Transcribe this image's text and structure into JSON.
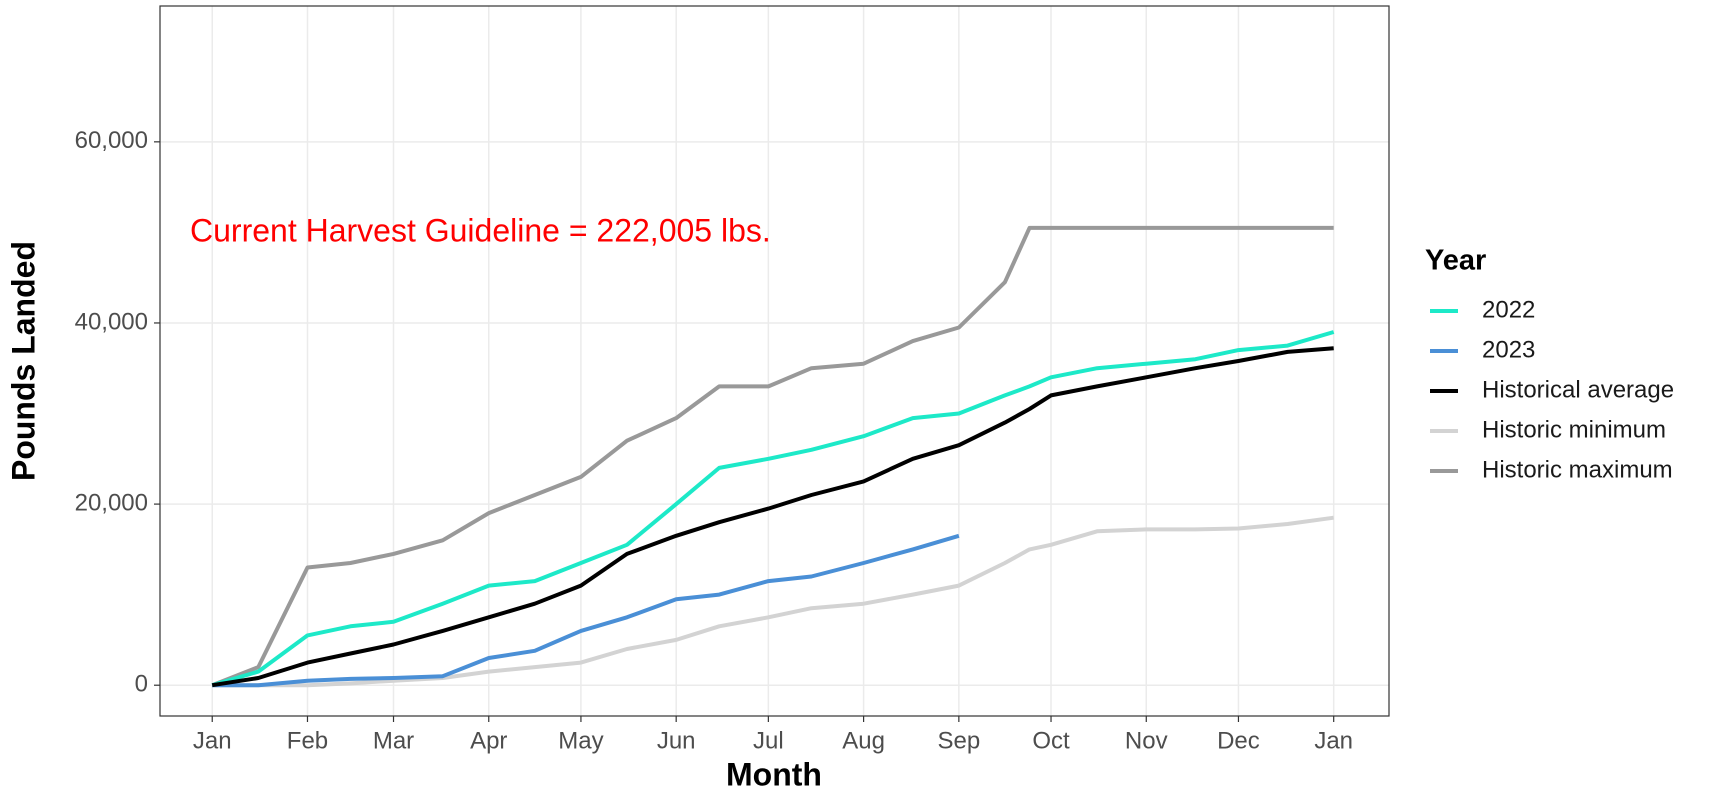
{
  "chart_data": {
    "type": "line",
    "annotation": "Current Harvest Guideline = 222,005 lbs.",
    "x_label": "Month",
    "y_label": "Pounds Landed",
    "legend_title": "Year",
    "legend": "right",
    "grid": true,
    "x": [
      0,
      15,
      31,
      45,
      59,
      75,
      90,
      105,
      120,
      135,
      151,
      165,
      181,
      195,
      212,
      228,
      243,
      258,
      266,
      273,
      288,
      304,
      320,
      334,
      350,
      365
    ],
    "xlim": [
      -17,
      383
    ],
    "xticks": [
      {
        "value": 0,
        "label": "Jan"
      },
      {
        "value": 31,
        "label": "Feb"
      },
      {
        "value": 59,
        "label": "Mar"
      },
      {
        "value": 90,
        "label": "Apr"
      },
      {
        "value": 120,
        "label": "May"
      },
      {
        "value": 151,
        "label": "Jun"
      },
      {
        "value": 181,
        "label": "Jul"
      },
      {
        "value": 212,
        "label": "Aug"
      },
      {
        "value": 243,
        "label": "Sep"
      },
      {
        "value": 273,
        "label": "Oct"
      },
      {
        "value": 304,
        "label": "Nov"
      },
      {
        "value": 334,
        "label": "Dec"
      },
      {
        "value": 365,
        "label": "Jan"
      }
    ],
    "ylim": [
      -3400,
      75000
    ],
    "yticks": [
      0,
      {
        "value": 20000,
        "label": "20,000"
      },
      {
        "value": 40000,
        "label": "40,000"
      },
      {
        "value": 60000,
        "label": "60,000"
      }
    ],
    "series": [
      {
        "name": "2022",
        "color": "#1de9c8",
        "values": [
          0,
          1500,
          5500,
          6500,
          7000,
          9000,
          11000,
          11500,
          13500,
          15500,
          20000,
          24000,
          25000,
          26000,
          27500,
          29500,
          30000,
          32000,
          33000,
          34000,
          35000,
          35500,
          36000,
          37000,
          37500,
          39000
        ]
      },
      {
        "name": "2023",
        "color": "#4a8fd6",
        "values": [
          0,
          0,
          500,
          700,
          800,
          1000,
          3000,
          3800,
          6000,
          7500,
          9500,
          10000,
          11500,
          12000,
          13500,
          15000,
          16500,
          null,
          null,
          null,
          null,
          null,
          null,
          null,
          null,
          null
        ]
      },
      {
        "name": "Historical average",
        "color": "#000000",
        "values": [
          0,
          800,
          2500,
          3500,
          4500,
          6000,
          7500,
          9000,
          11000,
          14500,
          16500,
          18000,
          19500,
          21000,
          22500,
          25000,
          26500,
          29000,
          30500,
          32000,
          33000,
          34000,
          35000,
          35800,
          36800,
          37200
        ]
      },
      {
        "name": "Historic minimum",
        "color": "#d3d3d3",
        "values": [
          0,
          0,
          0,
          200,
          500,
          800,
          1500,
          2000,
          2500,
          4000,
          5000,
          6500,
          7500,
          8500,
          9000,
          10000,
          11000,
          13500,
          15000,
          15500,
          17000,
          17200,
          17200,
          17300,
          17800,
          18500
        ]
      },
      {
        "name": "Historic maximum",
        "color": "#999999",
        "values": [
          0,
          2000,
          13000,
          13500,
          14500,
          16000,
          19000,
          21000,
          23000,
          27000,
          29500,
          33000,
          33000,
          35000,
          35500,
          38000,
          39500,
          44500,
          50500,
          50500,
          50500,
          50500,
          50500,
          50500,
          50500,
          50500
        ]
      }
    ]
  }
}
